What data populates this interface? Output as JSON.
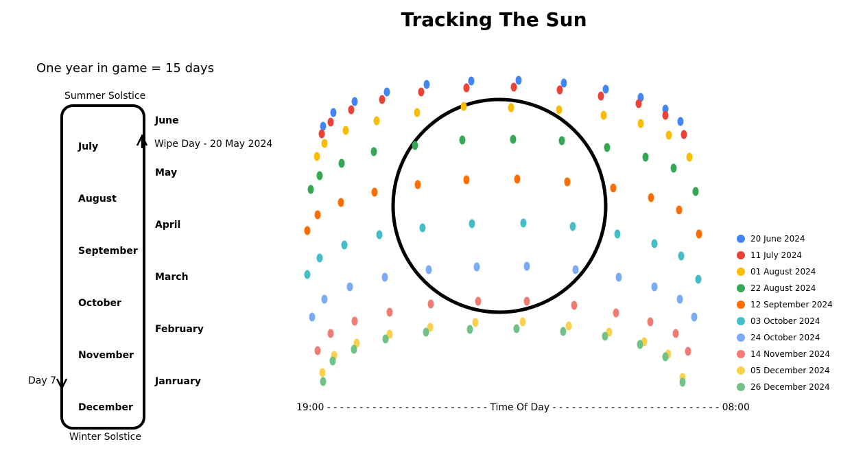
{
  "title": "Tracking The Sun",
  "subtitle": "One year in game = 15 days",
  "cycle": {
    "top_label": "Summer Solstice",
    "bottom_label": "Winter Solstice",
    "inside_months": [
      "July",
      "August",
      "September",
      "October",
      "November",
      "December"
    ],
    "outside_months": [
      "June",
      "May",
      "April",
      "March",
      "February",
      "Janruary"
    ],
    "wipe_day_label": "Wipe Day - 20 May 2024",
    "day7_label": "Day 7"
  },
  "axis": {
    "text": "19:00 - - - - - - - - - - - - - - - - - - - - - - - - - Time Of Day - - - - - - - - - - - - - - - - - - - - - - - - - - 08:00"
  },
  "colors": {
    "20 June 2024": "#4285F4",
    "11 July 2024": "#EA4335",
    "01 August 2024": "#FBBC04",
    "22 August 2024": "#34A853",
    "12 September 2024": "#FF6D01",
    "03 October 2024": "#46BDC6",
    "24 October 2024": "#7BAAF7",
    "14 November 2024": "#F07B72",
    "05 December 2024": "#FCD04F",
    "26 December 2024": "#71C287"
  },
  "chart_data": {
    "type": "scatter",
    "title": "Tracking The Sun",
    "xlabel": "Time Of Day",
    "x_tick_labels": [
      "19:00",
      "08:00"
    ],
    "legend_position": "right",
    "series": [
      {
        "name": "20 June 2024",
        "color": "#4285F4",
        "points": [
          [
            471,
            184
          ],
          [
            486,
            164
          ],
          [
            517,
            148
          ],
          [
            564,
            134
          ],
          [
            622,
            123
          ],
          [
            687,
            118
          ],
          [
            756,
            117
          ],
          [
            822,
            121
          ],
          [
            883,
            130
          ],
          [
            934,
            142
          ],
          [
            970,
            159
          ],
          [
            992,
            177
          ]
        ]
      },
      {
        "name": "11 July 2024",
        "color": "#EA4335",
        "points": [
          [
            469,
            195
          ],
          [
            482,
            178
          ],
          [
            512,
            160
          ],
          [
            557,
            145
          ],
          [
            614,
            134
          ],
          [
            680,
            128
          ],
          [
            749,
            127
          ],
          [
            816,
            131
          ],
          [
            876,
            140
          ],
          [
            931,
            151
          ],
          [
            970,
            168
          ],
          [
            997,
            196
          ]
        ]
      },
      {
        "name": "01 August 2024",
        "color": "#FBBC04",
        "points": [
          [
            462,
            228
          ],
          [
            473,
            209
          ],
          [
            504,
            190
          ],
          [
            549,
            176
          ],
          [
            608,
            164
          ],
          [
            676,
            155
          ],
          [
            745,
            157
          ],
          [
            815,
            160
          ],
          [
            880,
            168
          ],
          [
            934,
            180
          ],
          [
            975,
            197
          ],
          [
            1005,
            229
          ]
        ]
      },
      {
        "name": "22 August 2024",
        "color": "#34A853",
        "points": [
          [
            453,
            276
          ],
          [
            466,
            256
          ],
          [
            498,
            238
          ],
          [
            545,
            221
          ],
          [
            605,
            212
          ],
          [
            674,
            204
          ],
          [
            748,
            203
          ],
          [
            819,
            205
          ],
          [
            885,
            215
          ],
          [
            941,
            229
          ],
          [
            982,
            245
          ],
          [
            1014,
            279
          ]
        ]
      },
      {
        "name": "12 September 2024",
        "color": "#FF6D01",
        "points": [
          [
            448,
            336
          ],
          [
            463,
            313
          ],
          [
            497,
            295
          ],
          [
            546,
            280
          ],
          [
            609,
            269
          ],
          [
            680,
            262
          ],
          [
            754,
            261
          ],
          [
            827,
            265
          ],
          [
            894,
            274
          ],
          [
            949,
            288
          ],
          [
            990,
            306
          ],
          [
            1019,
            341
          ]
        ]
      },
      {
        "name": "03 October 2024",
        "color": "#46BDC6",
        "points": [
          [
            448,
            400
          ],
          [
            466,
            376
          ],
          [
            502,
            357
          ],
          [
            553,
            342
          ],
          [
            616,
            332
          ],
          [
            688,
            326
          ],
          [
            763,
            325
          ],
          [
            835,
            330
          ],
          [
            900,
            341
          ],
          [
            954,
            355
          ],
          [
            993,
            373
          ],
          [
            1018,
            407
          ]
        ]
      },
      {
        "name": "24 October 2024",
        "color": "#7BAAF7",
        "points": [
          [
            455,
            462
          ],
          [
            473,
            436
          ],
          [
            510,
            418
          ],
          [
            561,
            404
          ],
          [
            625,
            393
          ],
          [
            695,
            389
          ],
          [
            768,
            388
          ],
          [
            839,
            393
          ],
          [
            902,
            404
          ],
          [
            954,
            418
          ],
          [
            991,
            436
          ],
          [
            1012,
            462
          ]
        ]
      },
      {
        "name": "14 November 2024",
        "color": "#F07B72",
        "points": [
          [
            463,
            511
          ],
          [
            482,
            486
          ],
          [
            517,
            468
          ],
          [
            568,
            455
          ],
          [
            628,
            443
          ],
          [
            697,
            439
          ],
          [
            768,
            439
          ],
          [
            837,
            445
          ],
          [
            898,
            456
          ],
          [
            948,
            469
          ],
          [
            985,
            486
          ],
          [
            1003,
            512
          ]
        ]
      },
      {
        "name": "05 December 2024",
        "color": "#FCD04F",
        "points": [
          [
            470,
            543
          ],
          [
            487,
            518
          ],
          [
            520,
            500
          ],
          [
            568,
            487
          ],
          [
            627,
            477
          ],
          [
            693,
            470
          ],
          [
            762,
            469
          ],
          [
            829,
            475
          ],
          [
            888,
            484
          ],
          [
            939,
            498
          ],
          [
            974,
            516
          ],
          [
            995,
            550
          ]
        ]
      },
      {
        "name": "26 December 2024",
        "color": "#71C287",
        "points": [
          [
            471,
            556
          ],
          [
            485,
            526
          ],
          [
            516,
            509
          ],
          [
            562,
            494
          ],
          [
            621,
            484
          ],
          [
            685,
            480
          ],
          [
            753,
            479
          ],
          [
            821,
            483
          ],
          [
            882,
            490
          ],
          [
            933,
            502
          ],
          [
            970,
            520
          ],
          [
            995,
            557
          ]
        ]
      }
    ]
  }
}
